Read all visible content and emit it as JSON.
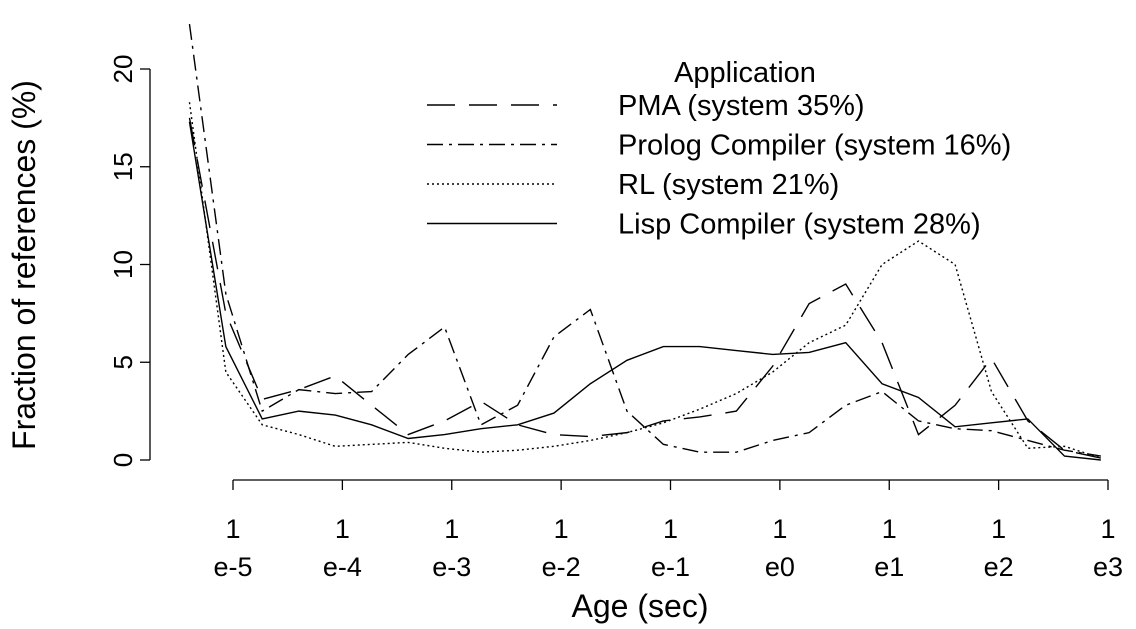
{
  "chart_data": {
    "type": "line",
    "xlabel": "Age (sec)",
    "ylabel": "Fraction of references (%)",
    "legend_title": "Application",
    "legend": "top-right",
    "xscale": "log",
    "xlim": [
      1e-05,
      1000
    ],
    "xticks": [
      {
        "value": 1e-05,
        "label": "1\ne-5"
      },
      {
        "value": 0.0001,
        "label": "1\ne-4"
      },
      {
        "value": 0.001,
        "label": "1\ne-3"
      },
      {
        "value": 0.01,
        "label": "1\ne-2"
      },
      {
        "value": 0.1,
        "label": "1\ne-1"
      },
      {
        "value": 1,
        "label": "1\ne0"
      },
      {
        "value": 10,
        "label": "1\ne1"
      },
      {
        "value": 100,
        "label": "1\ne2"
      },
      {
        "value": 1000,
        "label": "1\ne3"
      }
    ],
    "ylim": [
      0,
      20
    ],
    "yticks": [
      0,
      5,
      10,
      15,
      20
    ],
    "x": [
      4e-06,
      8.6e-06,
      1.85e-05,
      4e-05,
      8.6e-05,
      0.000185,
      0.0004,
      0.00086,
      0.00185,
      0.004,
      0.0086,
      0.0185,
      0.04,
      0.086,
      0.185,
      0.4,
      0.86,
      1.85,
      4,
      8.6,
      18.5,
      40,
      86,
      185,
      400,
      860
    ],
    "series": [
      {
        "name": "PMA (system 35%)",
        "color": "#000000",
        "dash": "28,14",
        "values": [
          17.5,
          7.5,
          3.1,
          3.6,
          4.3,
          2.8,
          1.3,
          2.0,
          3.0,
          1.8,
          1.3,
          1.2,
          1.4,
          2.0,
          2.2,
          2.5,
          4.8,
          8.0,
          9.0,
          6.0,
          1.3,
          2.8,
          5.2,
          2.0,
          0.5,
          0.1
        ]
      },
      {
        "name": "Prolog Compiler (system 16%)",
        "color": "#000000",
        "dash": "16,6,3,6",
        "values": [
          22.3,
          8.5,
          2.5,
          3.6,
          3.4,
          3.5,
          5.4,
          6.8,
          1.8,
          2.8,
          6.3,
          7.7,
          2.5,
          0.8,
          0.4,
          0.4,
          1.0,
          1.4,
          2.8,
          3.5,
          2.0,
          1.6,
          1.5,
          1.0,
          0.5,
          0.2
        ]
      },
      {
        "name": "RL (system 21%)",
        "color": "#000000",
        "dash": "2,3",
        "values": [
          18.3,
          4.5,
          1.8,
          1.3,
          0.7,
          0.8,
          0.9,
          0.6,
          0.4,
          0.5,
          0.7,
          1.0,
          1.4,
          1.9,
          2.6,
          3.4,
          4.5,
          6.0,
          6.9,
          10.0,
          11.2,
          10.0,
          3.5,
          0.6,
          0.7,
          0.1
        ]
      },
      {
        "name": "Lisp Compiler (system 28%)",
        "color": "#000000",
        "dash": "none",
        "values": [
          17.3,
          5.8,
          2.1,
          2.5,
          2.3,
          1.8,
          1.1,
          1.3,
          1.6,
          1.8,
          2.4,
          3.9,
          5.1,
          5.8,
          5.8,
          5.6,
          5.4,
          5.5,
          6.0,
          3.9,
          3.2,
          1.7,
          1.9,
          2.1,
          0.2,
          0.0
        ]
      }
    ]
  }
}
